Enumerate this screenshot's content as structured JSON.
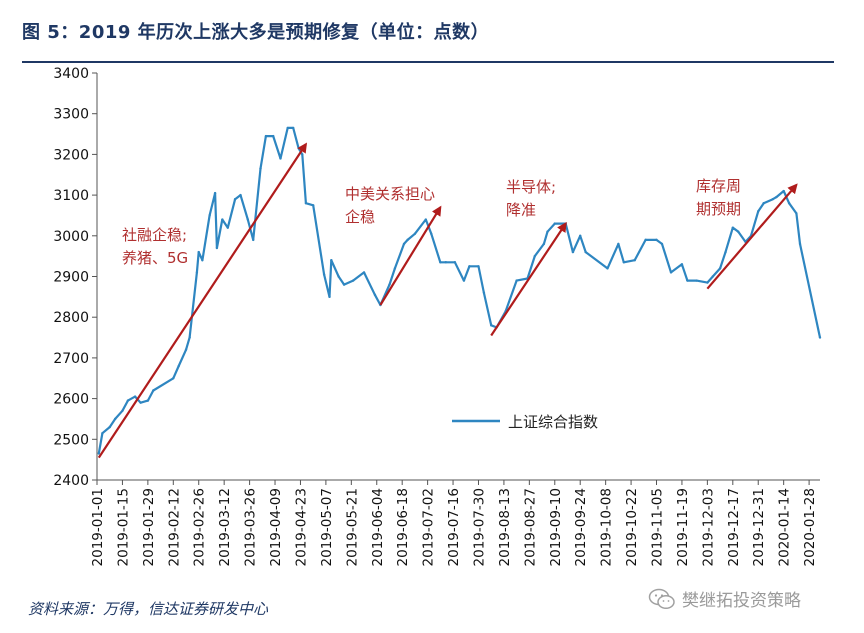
{
  "header": {
    "title": "图 5：2019 年历次上涨大多是预期修复（单位：点数）"
  },
  "footer": {
    "source": "资料来源：万得，信达证券研发中心",
    "watermark": "樊继拓投资策略"
  },
  "chart_data": {
    "type": "line",
    "title": "图 5：2019 年历次上涨大多是预期修复（单位：点数）",
    "xlabel": "",
    "ylabel": "",
    "ylim": [
      2400,
      3400
    ],
    "yticks": [
      2400,
      2500,
      2600,
      2700,
      2800,
      2900,
      3000,
      3100,
      3200,
      3300,
      3400
    ],
    "xlim": [
      "2019-01-01",
      "2020-02-03"
    ],
    "xticks": [
      "2019-01-01",
      "2019-01-15",
      "2019-01-29",
      "2019-02-12",
      "2019-02-26",
      "2019-03-12",
      "2019-03-26",
      "2019-04-09",
      "2019-04-23",
      "2019-05-07",
      "2019-05-21",
      "2019-06-04",
      "2019-06-18",
      "2019-07-02",
      "2019-07-16",
      "2019-07-30",
      "2019-08-13",
      "2019-08-27",
      "2019-09-10",
      "2019-09-24",
      "2019-10-08",
      "2019-10-22",
      "2019-11-05",
      "2019-11-19",
      "2019-12-03",
      "2019-12-17",
      "2019-12-31",
      "2020-01-14",
      "2020-01-28"
    ],
    "grid": false,
    "legend_position": "lower-center",
    "series": [
      {
        "name": "上证综合指数",
        "color": "#2e86c1",
        "x": [
          "2019-01-02",
          "2019-01-04",
          "2019-01-08",
          "2019-01-11",
          "2019-01-15",
          "2019-01-18",
          "2019-01-22",
          "2019-01-25",
          "2019-01-29",
          "2019-02-01",
          "2019-02-12",
          "2019-02-15",
          "2019-02-19",
          "2019-02-21",
          "2019-02-25",
          "2019-02-26",
          "2019-02-28",
          "2019-03-04",
          "2019-03-07",
          "2019-03-08",
          "2019-03-11",
          "2019-03-14",
          "2019-03-18",
          "2019-03-21",
          "2019-03-25",
          "2019-03-28",
          "2019-04-01",
          "2019-04-04",
          "2019-04-08",
          "2019-04-12",
          "2019-04-16",
          "2019-04-19",
          "2019-04-22",
          "2019-04-24",
          "2019-04-26",
          "2019-04-30",
          "2019-05-06",
          "2019-05-09",
          "2019-05-10",
          "2019-05-14",
          "2019-05-17",
          "2019-05-22",
          "2019-05-28",
          "2019-06-03",
          "2019-06-06",
          "2019-06-11",
          "2019-06-14",
          "2019-06-19",
          "2019-06-21",
          "2019-06-25",
          "2019-07-01",
          "2019-07-04",
          "2019-07-09",
          "2019-07-12",
          "2019-07-17",
          "2019-07-22",
          "2019-07-25",
          "2019-07-30",
          "2019-08-02",
          "2019-08-06",
          "2019-08-09",
          "2019-08-14",
          "2019-08-20",
          "2019-08-26",
          "2019-08-30",
          "2019-09-04",
          "2019-09-06",
          "2019-09-10",
          "2019-09-16",
          "2019-09-20",
          "2019-09-24",
          "2019-09-27",
          "2019-10-09",
          "2019-10-15",
          "2019-10-18",
          "2019-10-24",
          "2019-10-30",
          "2019-11-05",
          "2019-11-08",
          "2019-11-13",
          "2019-11-19",
          "2019-11-22",
          "2019-11-27",
          "2019-12-03",
          "2019-12-06",
          "2019-12-10",
          "2019-12-13",
          "2019-12-17",
          "2019-12-20",
          "2019-12-24",
          "2019-12-27",
          "2019-12-31",
          "2020-01-03",
          "2020-01-08",
          "2020-01-10",
          "2020-01-14",
          "2020-01-17",
          "2020-01-21",
          "2020-01-23",
          "2020-02-03"
        ],
        "values": [
          2465,
          2515,
          2530,
          2550,
          2570,
          2595,
          2605,
          2590,
          2595,
          2620,
          2650,
          2680,
          2720,
          2750,
          2910,
          2960,
          2940,
          3050,
          3105,
          2970,
          3040,
          3020,
          3090,
          3100,
          3040,
          2990,
          3165,
          3245,
          3245,
          3190,
          3265,
          3265,
          3215,
          3200,
          3080,
          3075,
          2905,
          2850,
          2940,
          2900,
          2880,
          2890,
          2910,
          2855,
          2830,
          2880,
          2920,
          2980,
          2990,
          3005,
          3040,
          3005,
          2935,
          2935,
          2935,
          2890,
          2925,
          2925,
          2860,
          2780,
          2775,
          2815,
          2890,
          2895,
          2950,
          2980,
          3010,
          3030,
          3030,
          2960,
          3000,
          2960,
          2920,
          2980,
          2935,
          2940,
          2990,
          2990,
          2980,
          2910,
          2930,
          2890,
          2890,
          2885,
          2900,
          2920,
          2960,
          3020,
          3010,
          2985,
          3000,
          3060,
          3080,
          3090,
          3095,
          3110,
          3080,
          3055,
          2980,
          2750
        ]
      }
    ],
    "annotations": [
      {
        "lines": [
          "社融企稳;",
          "养猪、5G"
        ],
        "arrow_from": [
          "2019-01-02",
          2455
        ],
        "arrow_to": [
          "2019-04-26",
          3225
        ]
      },
      {
        "lines": [
          "中美关系担心",
          "企稳"
        ],
        "arrow_from": [
          "2019-06-06",
          2830
        ],
        "arrow_to": [
          "2019-07-09",
          3070
        ]
      },
      {
        "lines": [
          "半导体;",
          "降准"
        ],
        "arrow_from": [
          "2019-08-06",
          2755
        ],
        "arrow_to": [
          "2019-09-16",
          3030
        ]
      },
      {
        "lines": [
          "库存周",
          "期预期"
        ],
        "arrow_from": [
          "2019-12-03",
          2870
        ],
        "arrow_to": [
          "2020-01-21",
          3125
        ]
      }
    ]
  }
}
